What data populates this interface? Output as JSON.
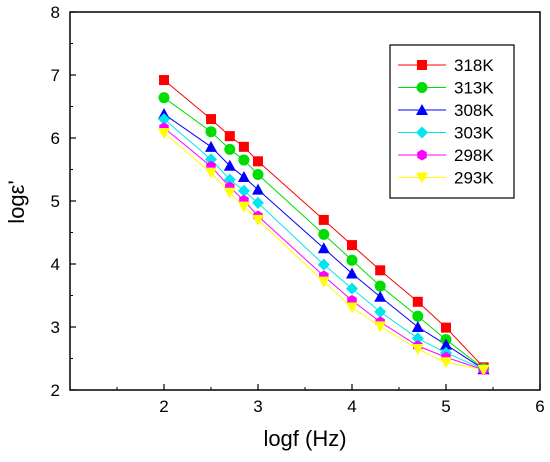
{
  "chart_data": {
    "type": "line",
    "title": "",
    "xlabel": "logf (Hz)",
    "ylabel": "logε'",
    "xlim": [
      1,
      6
    ],
    "ylim": [
      2,
      8
    ],
    "xticks": [
      2,
      3,
      4,
      5,
      6
    ],
    "xtick_labels": [
      "2",
      "3",
      "4",
      "5",
      "6"
    ],
    "yticks": [
      2,
      3,
      4,
      5,
      6,
      7,
      8
    ],
    "ytick_labels": [
      "2",
      "3",
      "4",
      "5",
      "6",
      "7",
      "8"
    ],
    "grid": false,
    "legend_position": "top-right",
    "x": [
      2.0,
      2.5,
      2.7,
      2.85,
      3.0,
      3.7,
      4.0,
      4.3,
      4.7,
      5.0,
      5.4
    ],
    "series": [
      {
        "name": "318K",
        "color": "#ff0000",
        "marker": "square",
        "values": [
          6.92,
          6.3,
          6.03,
          5.86,
          5.63,
          4.7,
          4.3,
          3.9,
          3.4,
          2.99,
          2.36
        ]
      },
      {
        "name": "313K",
        "color": "#00dd00",
        "marker": "circle",
        "values": [
          6.64,
          6.1,
          5.82,
          5.65,
          5.42,
          4.47,
          4.06,
          3.65,
          3.17,
          2.8,
          2.34
        ]
      },
      {
        "name": "308K",
        "color": "#0000ff",
        "marker": "triangle-up",
        "values": [
          6.38,
          5.86,
          5.56,
          5.38,
          5.18,
          4.25,
          3.85,
          3.48,
          3.0,
          2.72,
          2.33
        ]
      },
      {
        "name": "303K",
        "color": "#00e5ee",
        "marker": "diamond",
        "values": [
          6.3,
          5.66,
          5.34,
          5.16,
          4.97,
          3.99,
          3.61,
          3.24,
          2.82,
          2.59,
          2.33
        ]
      },
      {
        "name": "298K",
        "color": "#ff00ff",
        "marker": "hexagon",
        "values": [
          6.16,
          5.55,
          5.22,
          5.01,
          4.76,
          3.81,
          3.42,
          3.08,
          2.7,
          2.52,
          2.32
        ]
      },
      {
        "name": "293K",
        "color": "#ffff00",
        "marker": "triangle-down",
        "values": [
          6.08,
          5.45,
          5.13,
          4.91,
          4.7,
          3.72,
          3.31,
          3.01,
          2.65,
          2.44,
          2.32
        ]
      }
    ]
  }
}
